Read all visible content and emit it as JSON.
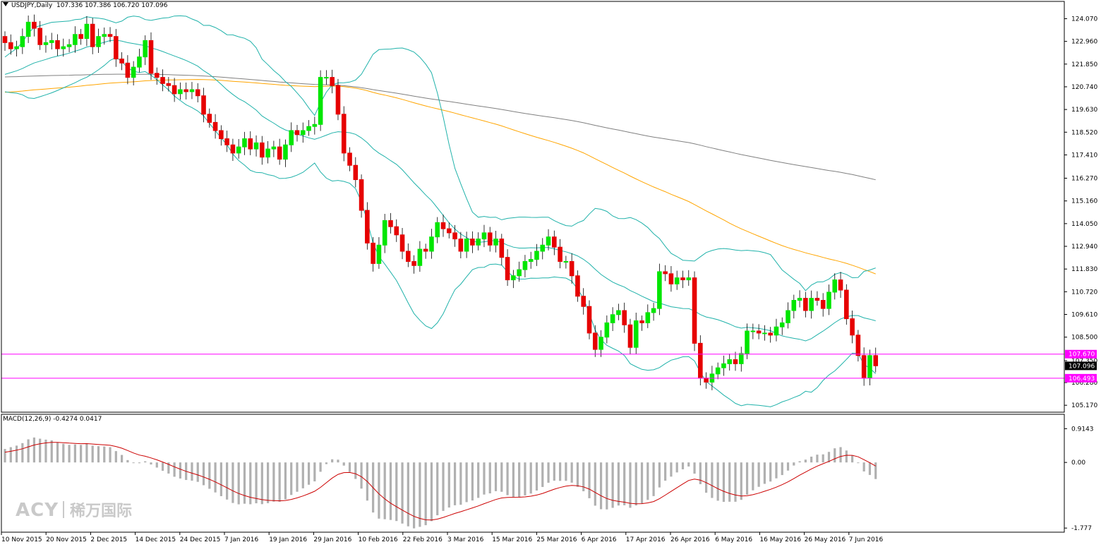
{
  "title": {
    "symbol": "USDJPY,Daily",
    "ohlc": "107.336 107.386 106.720 107.096"
  },
  "macd_label": {
    "name": "MACD(12,26,9)",
    "values": "-0.4274 0.0417"
  },
  "watermark": {
    "brand": "ACY",
    "cn": "稀万国际"
  },
  "colors": {
    "bull": "#00e600",
    "bear": "#e60000",
    "bollinger": "#20b2aa",
    "ma_mid": "#ffa500",
    "ma_long": "#808080",
    "hline": "#ff00ff",
    "macd_hist": "#b0b0b0",
    "macd_signal": "#cc0000",
    "grid_border": "#000000"
  },
  "price_axis": {
    "ticks": [
      "124.070",
      "122.960",
      "121.850",
      "120.740",
      "119.630",
      "118.520",
      "117.410",
      "116.270",
      "115.160",
      "114.050",
      "112.940",
      "111.830",
      "110.720",
      "109.610",
      "108.500",
      "107.350",
      "106.280",
      "105.170"
    ],
    "current_price": "107.096",
    "h_lines": [
      {
        "label": "107.670",
        "value": 107.67
      },
      {
        "label": "106.493",
        "value": 106.493
      }
    ]
  },
  "macd_axis": {
    "ticks": [
      "0.9143",
      "0.00",
      "-1.777"
    ]
  },
  "date_axis": {
    "labels": [
      "10 Nov 2015",
      "20 Nov 2015",
      "2 Dec 2015",
      "14 Dec 2015",
      "24 Dec 2015",
      "7 Jan 2016",
      "19 Jan 2016",
      "29 Jan 2016",
      "10 Feb 2016",
      "22 Feb 2016",
      "3 Mar 2016",
      "15 Mar 2016",
      "25 Mar 2016",
      "6 Apr 2016",
      "17 Apr 2016",
      "26 Apr 2016",
      "6 May 2016",
      "16 May 2016",
      "26 May 2016",
      "7 Jun 2016"
    ]
  },
  "chart_data": {
    "type": "candlestick",
    "instrument": "USDJPY",
    "timeframe": "Daily",
    "ylim": [
      104.9,
      124.5
    ],
    "macd_ylim": [
      -1.85,
      1.15
    ],
    "closes": [
      122.9,
      122.6,
      122.7,
      123.2,
      123.9,
      123.6,
      122.8,
      122.9,
      123.0,
      122.6,
      122.7,
      122.8,
      123.3,
      123.1,
      123.8,
      122.7,
      123.2,
      123.3,
      123.2,
      122.1,
      121.9,
      121.2,
      121.7,
      122.2,
      123.0,
      121.4,
      121.2,
      120.9,
      120.8,
      120.4,
      120.6,
      120.5,
      120.6,
      120.3,
      119.4,
      119.0,
      118.6,
      118.2,
      117.9,
      117.5,
      117.8,
      118.2,
      117.7,
      118.0,
      117.3,
      117.7,
      117.8,
      117.2,
      117.9,
      118.6,
      118.4,
      118.6,
      118.8,
      118.9,
      121.2,
      121.2,
      120.8,
      119.4,
      117.5,
      116.9,
      116.2,
      114.7,
      113.1,
      112.1,
      113.0,
      114.2,
      113.9,
      113.5,
      112.7,
      112.2,
      112.0,
      112.8,
      112.7,
      113.4,
      114.1,
      113.8,
      113.6,
      113.3,
      112.7,
      113.3,
      113.0,
      113.3,
      113.6,
      113.0,
      113.3,
      112.4,
      111.3,
      111.5,
      111.8,
      112.2,
      112.3,
      112.7,
      113.0,
      113.4,
      112.9,
      112.2,
      112.2,
      111.5,
      110.5,
      110.0,
      108.7,
      107.9,
      108.5,
      109.2,
      109.6,
      109.8,
      109.1,
      108.0,
      109.3,
      109.2,
      109.7,
      109.9,
      111.7,
      111.6,
      111.1,
      111.4,
      111.3,
      111.4,
      108.2,
      106.5,
      106.3,
      106.7,
      107.0,
      107.2,
      107.4,
      107.2,
      107.7,
      108.8,
      108.8,
      108.7,
      108.7,
      108.6,
      109.0,
      109.2,
      109.8,
      110.3,
      110.4,
      109.8,
      110.4,
      110.3,
      109.9,
      110.7,
      111.3,
      110.8,
      109.4,
      108.6,
      107.6,
      106.5,
      107.6,
      107.1
    ],
    "series_overlays": [
      "Bollinger Bands (upper/middle/lower)",
      "Moving average (orange)",
      "Moving average (gray)"
    ],
    "macd": {
      "histogram_last": -0.4274,
      "signal_last": 0.0417
    }
  }
}
